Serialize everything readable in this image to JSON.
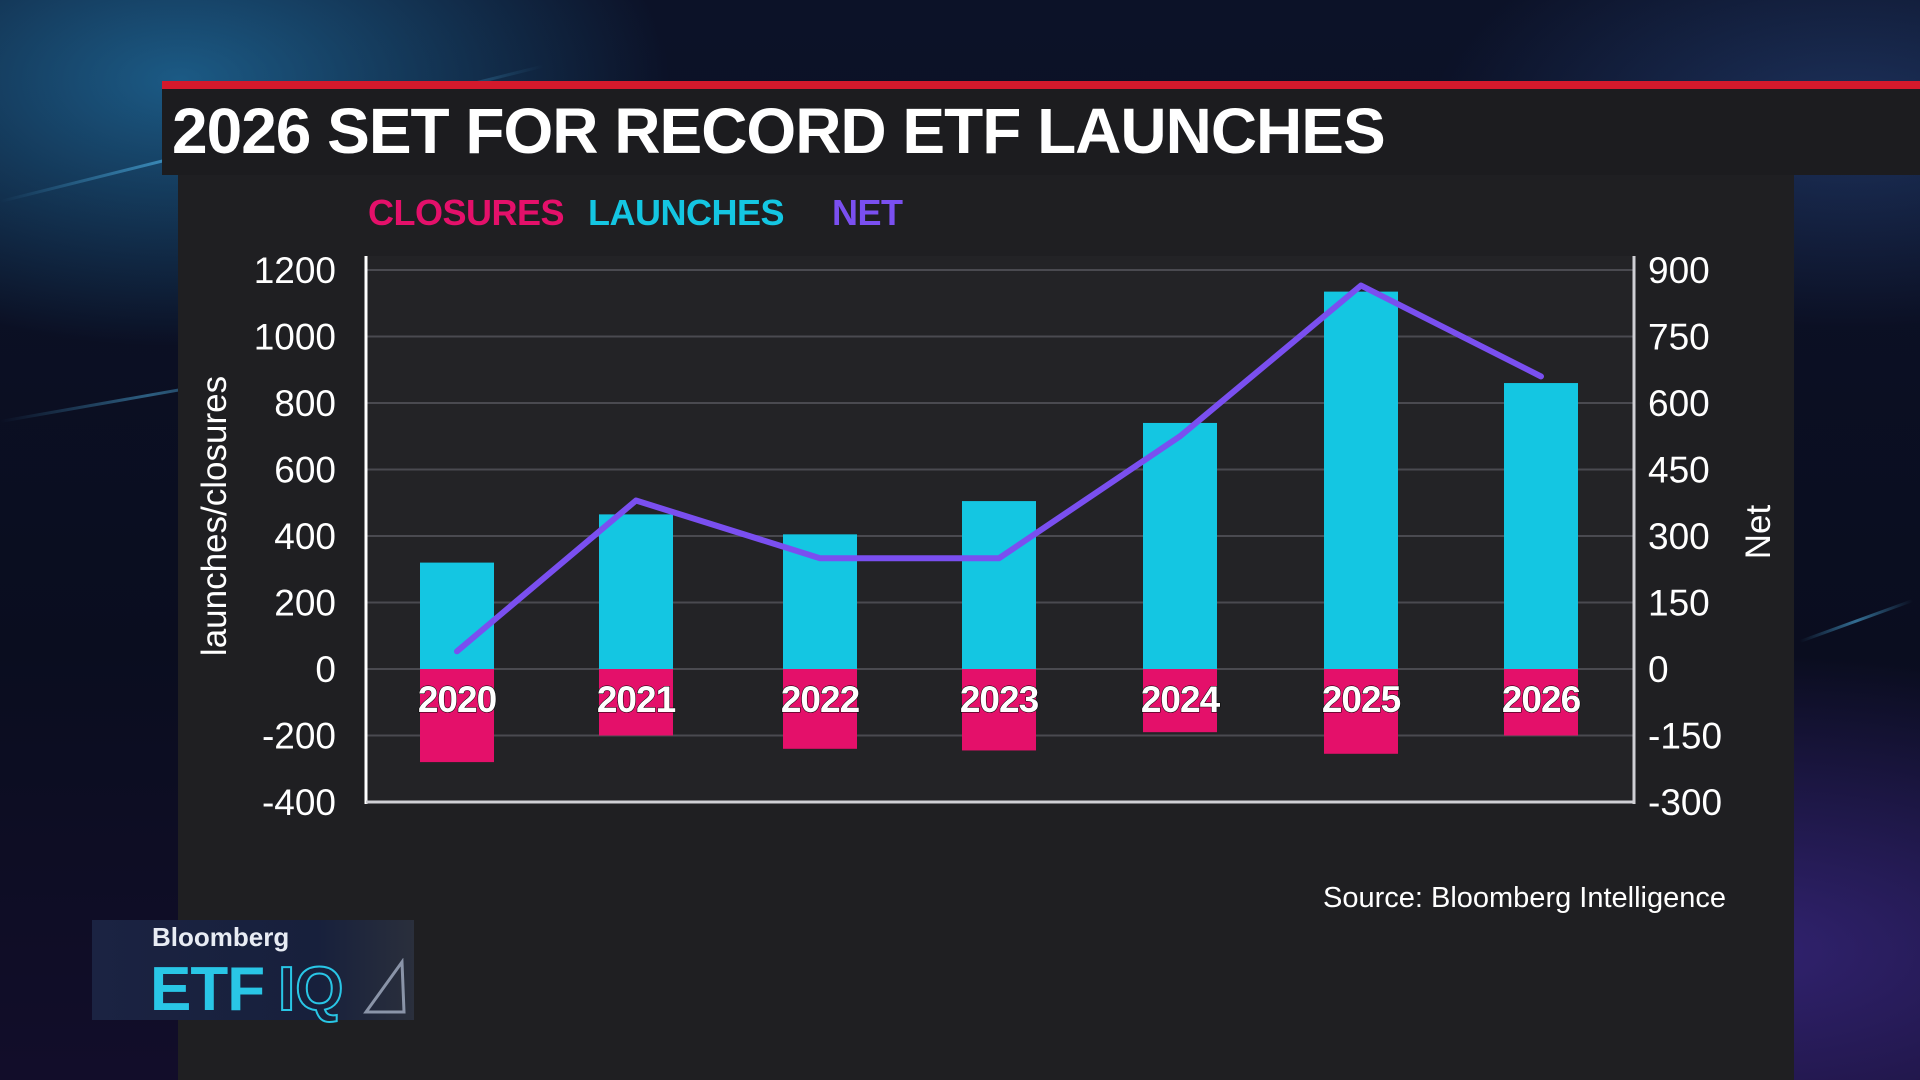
{
  "title": "2026 SET FOR RECORD ETF LAUNCHES",
  "source": "Source: Bloomberg Intelligence",
  "logo": {
    "brand": "Bloomberg",
    "show_prefix": "ETF",
    "show_suffix": "IQ"
  },
  "colors": {
    "closures": "#e4106a",
    "launches": "#14c6e2",
    "net": "#7a4ff0",
    "title_accent": "#d4192c"
  },
  "chart_data": {
    "type": "bar",
    "title": "2026 SET FOR RECORD ETF LAUNCHES",
    "legend_position": "top-left",
    "grid": true,
    "categories": [
      "2020",
      "2021",
      "2022",
      "2023",
      "2024",
      "2025",
      "2026"
    ],
    "series": [
      {
        "name": "CLOSURES",
        "type": "bar",
        "axis": "left",
        "values": [
          -280,
          -200,
          -240,
          -245,
          -190,
          -255,
          -200
        ]
      },
      {
        "name": "LAUNCHES",
        "type": "bar",
        "axis": "left",
        "values": [
          320,
          465,
          405,
          505,
          740,
          1135,
          860
        ]
      },
      {
        "name": "NET",
        "type": "line",
        "axis": "right",
        "values": [
          40,
          380,
          250,
          250,
          525,
          865,
          660
        ]
      }
    ],
    "ylabel": "launches/closures",
    "ylim": [
      -400,
      1200
    ],
    "yticks": [
      "1200",
      "1000",
      "800",
      "600",
      "400",
      "200",
      "0",
      "-200",
      "-400"
    ],
    "y2label": "Net",
    "y2lim": [
      -300,
      900
    ],
    "y2ticks": [
      "900",
      "750",
      "600",
      "450",
      "300",
      "150",
      "0",
      "-150",
      "-300"
    ]
  }
}
